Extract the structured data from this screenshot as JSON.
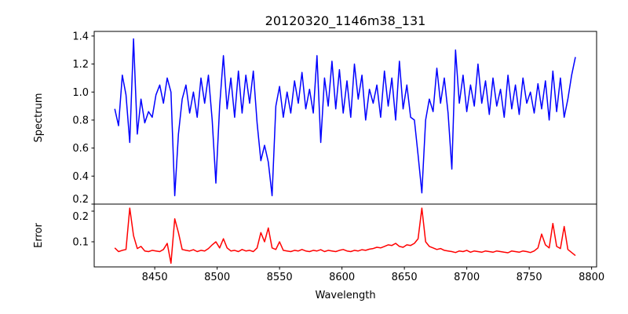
{
  "chart_data": [
    {
      "type": "line",
      "title": "20120320_1146m38_131",
      "xlabel": "",
      "ylabel": "Spectrum",
      "xlim": [
        8401.5,
        8804
      ],
      "ylim": [
        0.2,
        1.433
      ],
      "grid": false,
      "color": "#0000ff",
      "yticks": [
        "0.2",
        "0.4",
        "0.6",
        "0.8",
        "1.0",
        "1.2",
        "1.4"
      ],
      "x_start": 8418,
      "x_step": 3,
      "values": [
        0.88,
        0.76,
        1.12,
        0.98,
        0.64,
        1.38,
        0.7,
        0.95,
        0.78,
        0.86,
        0.82,
        0.98,
        1.05,
        0.92,
        1.1,
        1.0,
        0.26,
        0.7,
        0.95,
        1.05,
        0.85,
        1.0,
        0.82,
        1.1,
        0.92,
        1.12,
        0.8,
        0.35,
        0.9,
        1.26,
        0.88,
        1.1,
        0.82,
        1.15,
        0.85,
        1.12,
        0.92,
        1.15,
        0.78,
        0.51,
        0.62,
        0.5,
        0.26,
        0.9,
        1.04,
        0.82,
        1.0,
        0.85,
        1.08,
        0.92,
        1.14,
        0.88,
        1.02,
        0.85,
        1.26,
        0.64,
        1.1,
        0.9,
        1.22,
        0.88,
        1.16,
        0.85,
        1.08,
        0.82,
        1.2,
        0.95,
        1.12,
        0.8,
        1.02,
        0.92,
        1.05,
        0.82,
        1.15,
        0.9,
        1.1,
        0.8,
        1.22,
        0.88,
        1.05,
        0.82,
        0.8,
        0.55,
        0.28,
        0.8,
        0.95,
        0.86,
        1.17,
        0.92,
        1.1,
        0.85,
        0.45,
        1.3,
        0.92,
        1.12,
        0.86,
        1.05,
        0.9,
        1.2,
        0.92,
        1.08,
        0.84,
        1.1,
        0.9,
        1.02,
        0.82,
        1.12,
        0.88,
        1.05,
        0.84,
        1.1,
        0.92,
        1.0,
        0.85,
        1.06,
        0.88,
        1.08,
        0.8,
        1.15,
        0.86,
        1.1,
        0.82,
        0.95,
        1.12,
        1.25
      ]
    },
    {
      "type": "line",
      "title": "",
      "xlabel": "Wavelength",
      "ylabel": "Error",
      "xlim": [
        8401.5,
        8804
      ],
      "ylim": [
        0.018,
        0.223
      ],
      "grid": false,
      "color": "#ff0000",
      "yticks": [
        "0.1",
        "0.2"
      ],
      "xticks": [
        "8450",
        "8500",
        "8550",
        "8600",
        "8650",
        "8700",
        "8750",
        "8800"
      ],
      "x_start": 8418,
      "x_step": 3,
      "values": [
        0.08,
        0.068,
        0.072,
        0.075,
        0.21,
        0.12,
        0.078,
        0.085,
        0.07,
        0.068,
        0.072,
        0.07,
        0.068,
        0.075,
        0.095,
        0.03,
        0.175,
        0.13,
        0.075,
        0.072,
        0.07,
        0.074,
        0.068,
        0.072,
        0.07,
        0.078,
        0.09,
        0.1,
        0.08,
        0.11,
        0.08,
        0.07,
        0.072,
        0.068,
        0.075,
        0.07,
        0.072,
        0.068,
        0.08,
        0.13,
        0.1,
        0.145,
        0.08,
        0.075,
        0.1,
        0.072,
        0.07,
        0.068,
        0.072,
        0.07,
        0.075,
        0.07,
        0.068,
        0.072,
        0.07,
        0.074,
        0.068,
        0.072,
        0.07,
        0.068,
        0.072,
        0.075,
        0.07,
        0.068,
        0.072,
        0.07,
        0.074,
        0.072,
        0.076,
        0.078,
        0.082,
        0.08,
        0.085,
        0.09,
        0.088,
        0.095,
        0.085,
        0.082,
        0.09,
        0.088,
        0.095,
        0.11,
        0.21,
        0.1,
        0.085,
        0.08,
        0.075,
        0.078,
        0.072,
        0.07,
        0.068,
        0.065,
        0.07,
        0.068,
        0.072,
        0.066,
        0.07,
        0.068,
        0.066,
        0.07,
        0.068,
        0.066,
        0.07,
        0.068,
        0.066,
        0.064,
        0.07,
        0.068,
        0.066,
        0.07,
        0.068,
        0.065,
        0.07,
        0.08,
        0.125,
        0.09,
        0.08,
        0.16,
        0.085,
        0.078,
        0.15,
        0.075,
        0.065,
        0.055
      ]
    }
  ]
}
